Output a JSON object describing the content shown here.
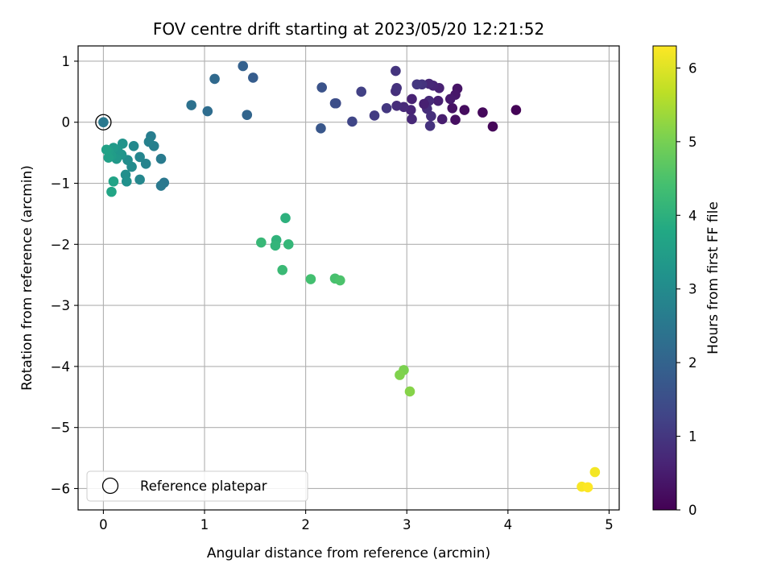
{
  "chart_data": {
    "type": "scatter",
    "title": "FOV centre drift starting at 2023/05/20 12:21:52",
    "xlabel": "Angular distance from reference (arcmin)",
    "ylabel": "Rotation from reference (arcmin)",
    "xlim": [
      -0.25,
      5.1
    ],
    "ylim": [
      -6.35,
      1.25
    ],
    "xticks": [
      0,
      1,
      2,
      3,
      4,
      5
    ],
    "yticks": [
      1,
      0,
      -1,
      -2,
      -3,
      -4,
      -5,
      -6
    ],
    "grid": true,
    "colorbar": {
      "label": "Hours from first FF file",
      "colormap": "viridis",
      "range": [
        0,
        6.3
      ],
      "ticks": [
        0,
        1,
        2,
        3,
        4,
        5,
        6
      ]
    },
    "legend": {
      "placement": "lower-left",
      "entries": [
        {
          "label": "Reference platepar",
          "marker": "open-circle"
        }
      ]
    },
    "reference_point": {
      "x": 0,
      "y": 0
    },
    "points": [
      {
        "x": 4.08,
        "y": 0.2,
        "c": 0.05
      },
      {
        "x": 3.85,
        "y": -0.07,
        "c": 0.1
      },
      {
        "x": 3.75,
        "y": 0.16,
        "c": 0.15
      },
      {
        "x": 3.57,
        "y": 0.2,
        "c": 0.2
      },
      {
        "x": 3.48,
        "y": 0.04,
        "c": 0.25
      },
      {
        "x": 3.45,
        "y": 0.23,
        "c": 0.3
      },
      {
        "x": 3.5,
        "y": 0.55,
        "c": 0.35
      },
      {
        "x": 3.48,
        "y": 0.45,
        "c": 0.4
      },
      {
        "x": 3.43,
        "y": 0.38,
        "c": 0.45
      },
      {
        "x": 3.35,
        "y": 0.05,
        "c": 0.5
      },
      {
        "x": 3.31,
        "y": 0.35,
        "c": 0.55
      },
      {
        "x": 3.32,
        "y": 0.56,
        "c": 0.6
      },
      {
        "x": 3.26,
        "y": 0.6,
        "c": 0.65
      },
      {
        "x": 3.22,
        "y": 0.63,
        "c": 0.7
      },
      {
        "x": 3.22,
        "y": 0.35,
        "c": 0.75
      },
      {
        "x": 3.2,
        "y": 0.22,
        "c": 0.8
      },
      {
        "x": 3.24,
        "y": 0.1,
        "c": 0.85
      },
      {
        "x": 3.23,
        "y": -0.06,
        "c": 0.9
      },
      {
        "x": 3.15,
        "y": 0.62,
        "c": 0.95
      },
      {
        "x": 3.1,
        "y": 0.62,
        "c": 1.0
      },
      {
        "x": 3.17,
        "y": 0.3,
        "c": 0.55
      },
      {
        "x": 3.05,
        "y": 0.38,
        "c": 0.6
      },
      {
        "x": 3.04,
        "y": 0.2,
        "c": 0.65
      },
      {
        "x": 3.05,
        "y": 0.05,
        "c": 0.7
      },
      {
        "x": 2.97,
        "y": 0.25,
        "c": 0.75
      },
      {
        "x": 2.9,
        "y": 0.27,
        "c": 0.8
      },
      {
        "x": 2.89,
        "y": 0.51,
        "c": 0.85
      },
      {
        "x": 2.9,
        "y": 0.56,
        "c": 0.9
      },
      {
        "x": 2.89,
        "y": 0.84,
        "c": 0.95
      },
      {
        "x": 2.8,
        "y": 0.23,
        "c": 1.0
      },
      {
        "x": 2.68,
        "y": 0.11,
        "c": 1.1
      },
      {
        "x": 2.55,
        "y": 0.5,
        "c": 1.2
      },
      {
        "x": 2.46,
        "y": 0.01,
        "c": 1.3
      },
      {
        "x": 2.3,
        "y": 0.31,
        "c": 1.4
      },
      {
        "x": 2.29,
        "y": 0.31,
        "c": 1.5
      },
      {
        "x": 2.16,
        "y": 0.57,
        "c": 1.6
      },
      {
        "x": 2.15,
        "y": -0.1,
        "c": 1.7
      },
      {
        "x": 1.48,
        "y": 0.73,
        "c": 1.85
      },
      {
        "x": 1.38,
        "y": 0.92,
        "c": 1.95
      },
      {
        "x": 1.42,
        "y": 0.12,
        "c": 2.05
      },
      {
        "x": 1.1,
        "y": 0.71,
        "c": 2.15
      },
      {
        "x": 1.03,
        "y": 0.18,
        "c": 2.25
      },
      {
        "x": 0.87,
        "y": 0.28,
        "c": 2.35
      },
      {
        "x": 0.6,
        "y": -0.99,
        "c": 2.5
      },
      {
        "x": 0.57,
        "y": -1.04,
        "c": 2.55
      },
      {
        "x": 0.57,
        "y": -0.6,
        "c": 2.6
      },
      {
        "x": 0.47,
        "y": -0.23,
        "c": 2.65
      },
      {
        "x": 0.5,
        "y": -0.39,
        "c": 2.7
      },
      {
        "x": 0.45,
        "y": -0.32,
        "c": 2.75
      },
      {
        "x": 0.42,
        "y": -0.68,
        "c": 2.8
      },
      {
        "x": 0.36,
        "y": -0.57,
        "c": 2.85
      },
      {
        "x": 0.36,
        "y": -0.94,
        "c": 2.9
      },
      {
        "x": 0.3,
        "y": -0.39,
        "c": 2.95
      },
      {
        "x": 0.28,
        "y": -0.73,
        "c": 3.0
      },
      {
        "x": 0.24,
        "y": -0.62,
        "c": 3.05
      },
      {
        "x": 0.22,
        "y": -0.86,
        "c": 3.1
      },
      {
        "x": 0.23,
        "y": -0.97,
        "c": 3.15
      },
      {
        "x": 0.19,
        "y": -0.35,
        "c": 3.2
      },
      {
        "x": 0.18,
        "y": -0.53,
        "c": 3.25
      },
      {
        "x": 0.14,
        "y": -0.45,
        "c": 3.3
      },
      {
        "x": 0.13,
        "y": -0.6,
        "c": 3.35
      },
      {
        "x": 0.1,
        "y": -0.42,
        "c": 3.4
      },
      {
        "x": 0.08,
        "y": -0.55,
        "c": 3.45
      },
      {
        "x": 0.05,
        "y": -0.47,
        "c": 3.5
      },
      {
        "x": 0.05,
        "y": -0.58,
        "c": 3.55
      },
      {
        "x": 0.03,
        "y": -0.45,
        "c": 3.6
      },
      {
        "x": 0.1,
        "y": -0.97,
        "c": 3.65
      },
      {
        "x": 0.08,
        "y": -1.14,
        "c": 3.7
      },
      {
        "x": 1.8,
        "y": -1.57,
        "c": 4.0
      },
      {
        "x": 1.71,
        "y": -1.93,
        "c": 4.05
      },
      {
        "x": 1.7,
        "y": -2.02,
        "c": 4.1
      },
      {
        "x": 1.83,
        "y": -2.0,
        "c": 4.15
      },
      {
        "x": 1.56,
        "y": -1.97,
        "c": 4.2
      },
      {
        "x": 1.77,
        "y": -2.42,
        "c": 4.25
      },
      {
        "x": 2.05,
        "y": -2.57,
        "c": 4.4
      },
      {
        "x": 2.29,
        "y": -2.56,
        "c": 4.45
      },
      {
        "x": 2.34,
        "y": -2.59,
        "c": 4.5
      },
      {
        "x": 2.97,
        "y": -4.06,
        "c": 5.05
      },
      {
        "x": 2.93,
        "y": -4.14,
        "c": 5.1
      },
      {
        "x": 3.03,
        "y": -4.41,
        "c": 5.15
      },
      {
        "x": 4.86,
        "y": -5.73,
        "c": 6.2
      },
      {
        "x": 4.73,
        "y": -5.97,
        "c": 6.25
      },
      {
        "x": 4.79,
        "y": -5.98,
        "c": 6.3
      }
    ]
  }
}
